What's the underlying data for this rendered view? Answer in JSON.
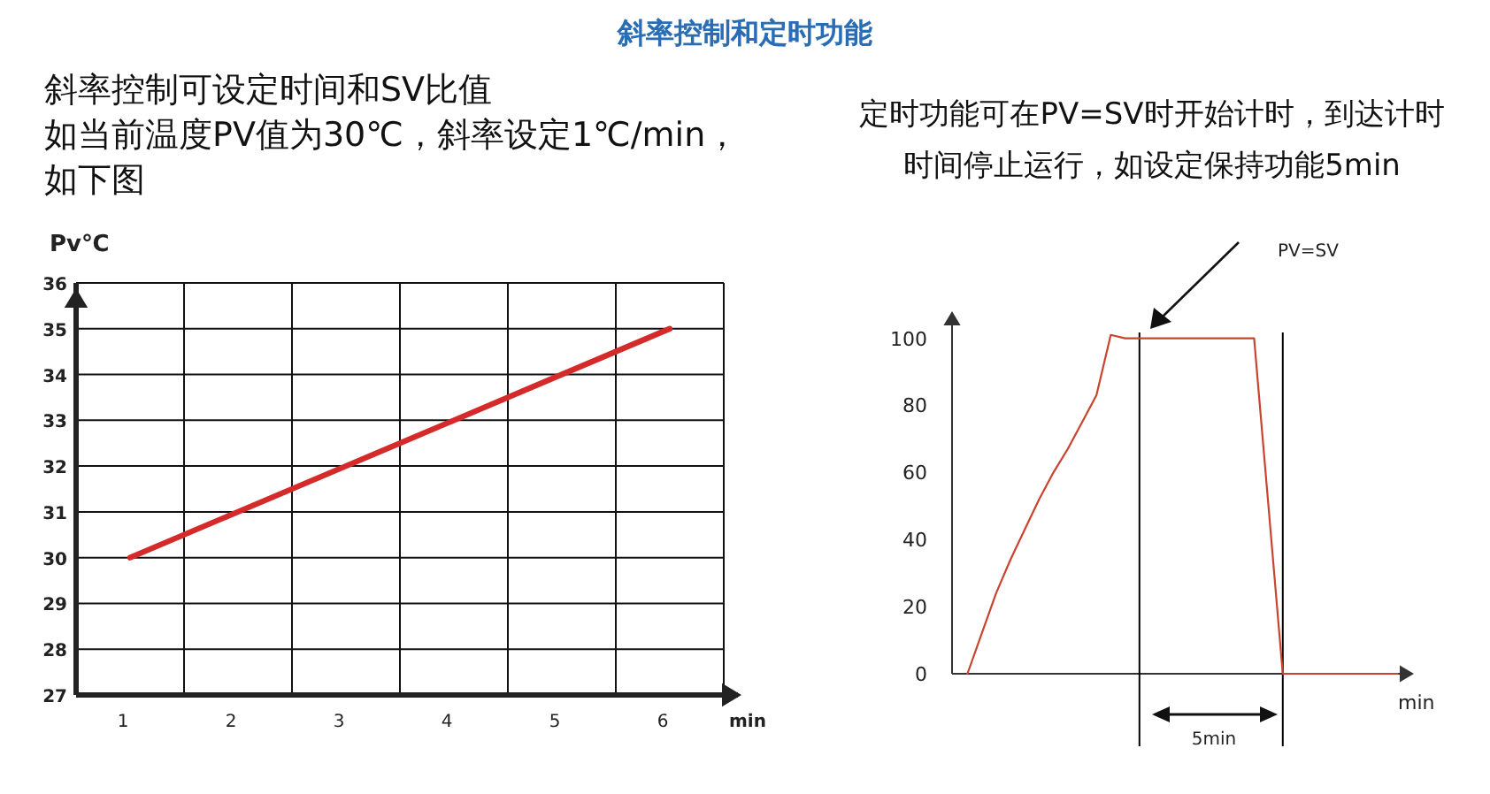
{
  "chart_data": [
    {
      "type": "line",
      "title": "斜率控制和定时功能",
      "subtitle": "斜率控制可设定时间和SV比值",
      "annotations": [
        "如当前温度PV值为30℃，斜率设定1℃/min，如下图"
      ],
      "ylabel": "Pv℃",
      "xlabel": "min",
      "categories": [
        "1",
        "2",
        "3",
        "4",
        "5",
        "6"
      ],
      "series": [
        {
          "color": "#d42a2a",
          "values": [
            30,
            31,
            32,
            33,
            34,
            35
          ]
        }
      ],
      "ylim": [
        27,
        36
      ],
      "yticks": [
        27,
        28,
        29,
        30,
        31,
        32,
        33,
        34,
        35,
        36
      ],
      "grid": true,
      "marker": "none",
      "line_style": "solid"
    },
    {
      "type": "line",
      "subtitle": "定时功能可在PV=SV时开始计时，到达计时时间停止运行，如设定保持功能5min",
      "xlabel": "min",
      "categories": [
        null,
        null,
        null,
        null,
        null,
        null,
        null,
        null,
        null,
        null,
        null,
        null,
        null,
        null,
        null,
        null,
        null,
        null,
        null,
        null,
        null,
        null,
        null,
        null,
        null,
        null,
        null,
        null,
        null,
        null,
        null
      ],
      "series": [
        {
          "color": "#c8442e",
          "values": [
            0,
            12,
            24,
            34,
            43,
            52,
            60,
            67,
            75,
            83,
            101,
            100,
            100,
            100,
            100,
            100,
            100,
            100,
            100,
            100,
            100,
            50,
            0,
            0,
            0,
            0,
            0,
            0,
            0,
            0,
            0
          ]
        }
      ],
      "ylim": [
        0,
        107
      ],
      "yticks": [
        0,
        20,
        40,
        60,
        80,
        100
      ],
      "grid": false,
      "annotations": [
        "PV=SV",
        "5min"
      ]
    }
  ]
}
